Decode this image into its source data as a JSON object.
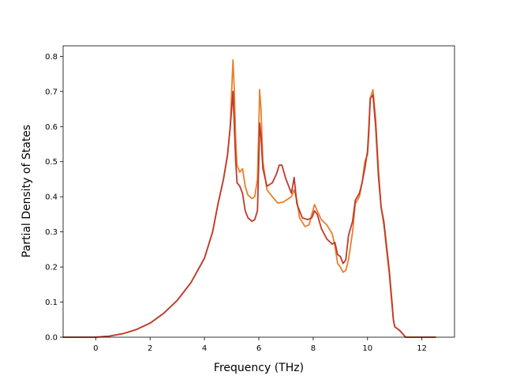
{
  "chart_data": {
    "type": "line",
    "title": "",
    "xlabel": "Frequency (THz)",
    "ylabel": "Partial Density of States",
    "xlim": [
      -1.2,
      13.2
    ],
    "ylim": [
      0.0,
      0.83
    ],
    "xticks": [
      0,
      2,
      4,
      6,
      8,
      10,
      12
    ],
    "yticks": [
      0.0,
      0.1,
      0.2,
      0.3,
      0.4,
      0.5,
      0.6,
      0.7,
      0.8
    ],
    "xtick_labels": [
      "0",
      "2",
      "4",
      "6",
      "8",
      "10",
      "12"
    ],
    "ytick_labels": [
      "0.0",
      "0.1",
      "0.2",
      "0.3",
      "0.4",
      "0.5",
      "0.6",
      "0.7",
      "0.8"
    ],
    "grid": false,
    "legend": "none",
    "series": [
      {
        "color": "#e8802a",
        "points": [
          [
            -1.2,
            0.0
          ],
          [
            0.0,
            0.0
          ],
          [
            0.5,
            0.003
          ],
          [
            1.0,
            0.01
          ],
          [
            1.5,
            0.022
          ],
          [
            2.0,
            0.04
          ],
          [
            2.5,
            0.068
          ],
          [
            3.0,
            0.105
          ],
          [
            3.5,
            0.155
          ],
          [
            4.0,
            0.225
          ],
          [
            4.3,
            0.3
          ],
          [
            4.5,
            0.38
          ],
          [
            4.7,
            0.45
          ],
          [
            4.85,
            0.52
          ],
          [
            4.95,
            0.6
          ],
          [
            5.0,
            0.7
          ],
          [
            5.05,
            0.79
          ],
          [
            5.1,
            0.7
          ],
          [
            5.15,
            0.56
          ],
          [
            5.2,
            0.49
          ],
          [
            5.3,
            0.47
          ],
          [
            5.4,
            0.48
          ],
          [
            5.5,
            0.43
          ],
          [
            5.6,
            0.405
          ],
          [
            5.75,
            0.395
          ],
          [
            5.85,
            0.4
          ],
          [
            5.95,
            0.45
          ],
          [
            6.0,
            0.6
          ],
          [
            6.03,
            0.705
          ],
          [
            6.08,
            0.65
          ],
          [
            6.15,
            0.5
          ],
          [
            6.3,
            0.42
          ],
          [
            6.5,
            0.4
          ],
          [
            6.7,
            0.382
          ],
          [
            6.9,
            0.385
          ],
          [
            7.1,
            0.395
          ],
          [
            7.2,
            0.4
          ],
          [
            7.3,
            0.42
          ],
          [
            7.4,
            0.39
          ],
          [
            7.5,
            0.34
          ],
          [
            7.7,
            0.315
          ],
          [
            7.85,
            0.32
          ],
          [
            7.95,
            0.35
          ],
          [
            8.05,
            0.378
          ],
          [
            8.15,
            0.36
          ],
          [
            8.3,
            0.335
          ],
          [
            8.5,
            0.32
          ],
          [
            8.7,
            0.295
          ],
          [
            8.8,
            0.26
          ],
          [
            8.9,
            0.21
          ],
          [
            9.0,
            0.2
          ],
          [
            9.1,
            0.185
          ],
          [
            9.2,
            0.19
          ],
          [
            9.3,
            0.22
          ],
          [
            9.45,
            0.3
          ],
          [
            9.55,
            0.38
          ],
          [
            9.7,
            0.4
          ],
          [
            9.8,
            0.44
          ],
          [
            9.9,
            0.5
          ],
          [
            10.0,
            0.52
          ],
          [
            10.05,
            0.58
          ],
          [
            10.1,
            0.68
          ],
          [
            10.2,
            0.705
          ],
          [
            10.3,
            0.62
          ],
          [
            10.4,
            0.48
          ],
          [
            10.5,
            0.37
          ],
          [
            10.6,
            0.32
          ],
          [
            10.7,
            0.25
          ],
          [
            10.8,
            0.18
          ],
          [
            10.9,
            0.09
          ],
          [
            10.95,
            0.05
          ],
          [
            11.0,
            0.03
          ],
          [
            11.2,
            0.018
          ],
          [
            11.4,
            0.0
          ],
          [
            12.5,
            0.0
          ]
        ]
      },
      {
        "color": "#c0392b",
        "points": [
          [
            -1.2,
            0.0
          ],
          [
            0.0,
            0.0
          ],
          [
            0.5,
            0.003
          ],
          [
            1.0,
            0.01
          ],
          [
            1.5,
            0.022
          ],
          [
            2.0,
            0.04
          ],
          [
            2.5,
            0.068
          ],
          [
            3.0,
            0.105
          ],
          [
            3.5,
            0.155
          ],
          [
            4.0,
            0.225
          ],
          [
            4.3,
            0.3
          ],
          [
            4.5,
            0.38
          ],
          [
            4.7,
            0.45
          ],
          [
            4.85,
            0.52
          ],
          [
            4.95,
            0.6
          ],
          [
            5.0,
            0.65
          ],
          [
            5.05,
            0.7
          ],
          [
            5.1,
            0.6
          ],
          [
            5.15,
            0.5
          ],
          [
            5.2,
            0.44
          ],
          [
            5.3,
            0.43
          ],
          [
            5.4,
            0.41
          ],
          [
            5.5,
            0.36
          ],
          [
            5.6,
            0.34
          ],
          [
            5.75,
            0.33
          ],
          [
            5.85,
            0.335
          ],
          [
            5.95,
            0.36
          ],
          [
            6.0,
            0.5
          ],
          [
            6.03,
            0.61
          ],
          [
            6.08,
            0.57
          ],
          [
            6.15,
            0.48
          ],
          [
            6.3,
            0.43
          ],
          [
            6.5,
            0.44
          ],
          [
            6.65,
            0.465
          ],
          [
            6.75,
            0.49
          ],
          [
            6.85,
            0.49
          ],
          [
            7.0,
            0.45
          ],
          [
            7.2,
            0.41
          ],
          [
            7.3,
            0.455
          ],
          [
            7.4,
            0.38
          ],
          [
            7.6,
            0.34
          ],
          [
            7.8,
            0.335
          ],
          [
            7.95,
            0.34
          ],
          [
            8.05,
            0.36
          ],
          [
            8.15,
            0.35
          ],
          [
            8.3,
            0.31
          ],
          [
            8.5,
            0.28
          ],
          [
            8.7,
            0.265
          ],
          [
            8.8,
            0.27
          ],
          [
            8.9,
            0.235
          ],
          [
            9.0,
            0.23
          ],
          [
            9.1,
            0.21
          ],
          [
            9.2,
            0.22
          ],
          [
            9.3,
            0.29
          ],
          [
            9.45,
            0.33
          ],
          [
            9.55,
            0.39
          ],
          [
            9.7,
            0.41
          ],
          [
            9.8,
            0.44
          ],
          [
            9.9,
            0.48
          ],
          [
            10.0,
            0.53
          ],
          [
            10.05,
            0.6
          ],
          [
            10.1,
            0.68
          ],
          [
            10.2,
            0.69
          ],
          [
            10.3,
            0.6
          ],
          [
            10.4,
            0.46
          ],
          [
            10.5,
            0.37
          ],
          [
            10.6,
            0.33
          ],
          [
            10.7,
            0.26
          ],
          [
            10.8,
            0.19
          ],
          [
            10.9,
            0.1
          ],
          [
            10.95,
            0.05
          ],
          [
            11.0,
            0.03
          ],
          [
            11.2,
            0.018
          ],
          [
            11.4,
            0.0
          ],
          [
            12.5,
            0.0
          ]
        ]
      }
    ]
  }
}
